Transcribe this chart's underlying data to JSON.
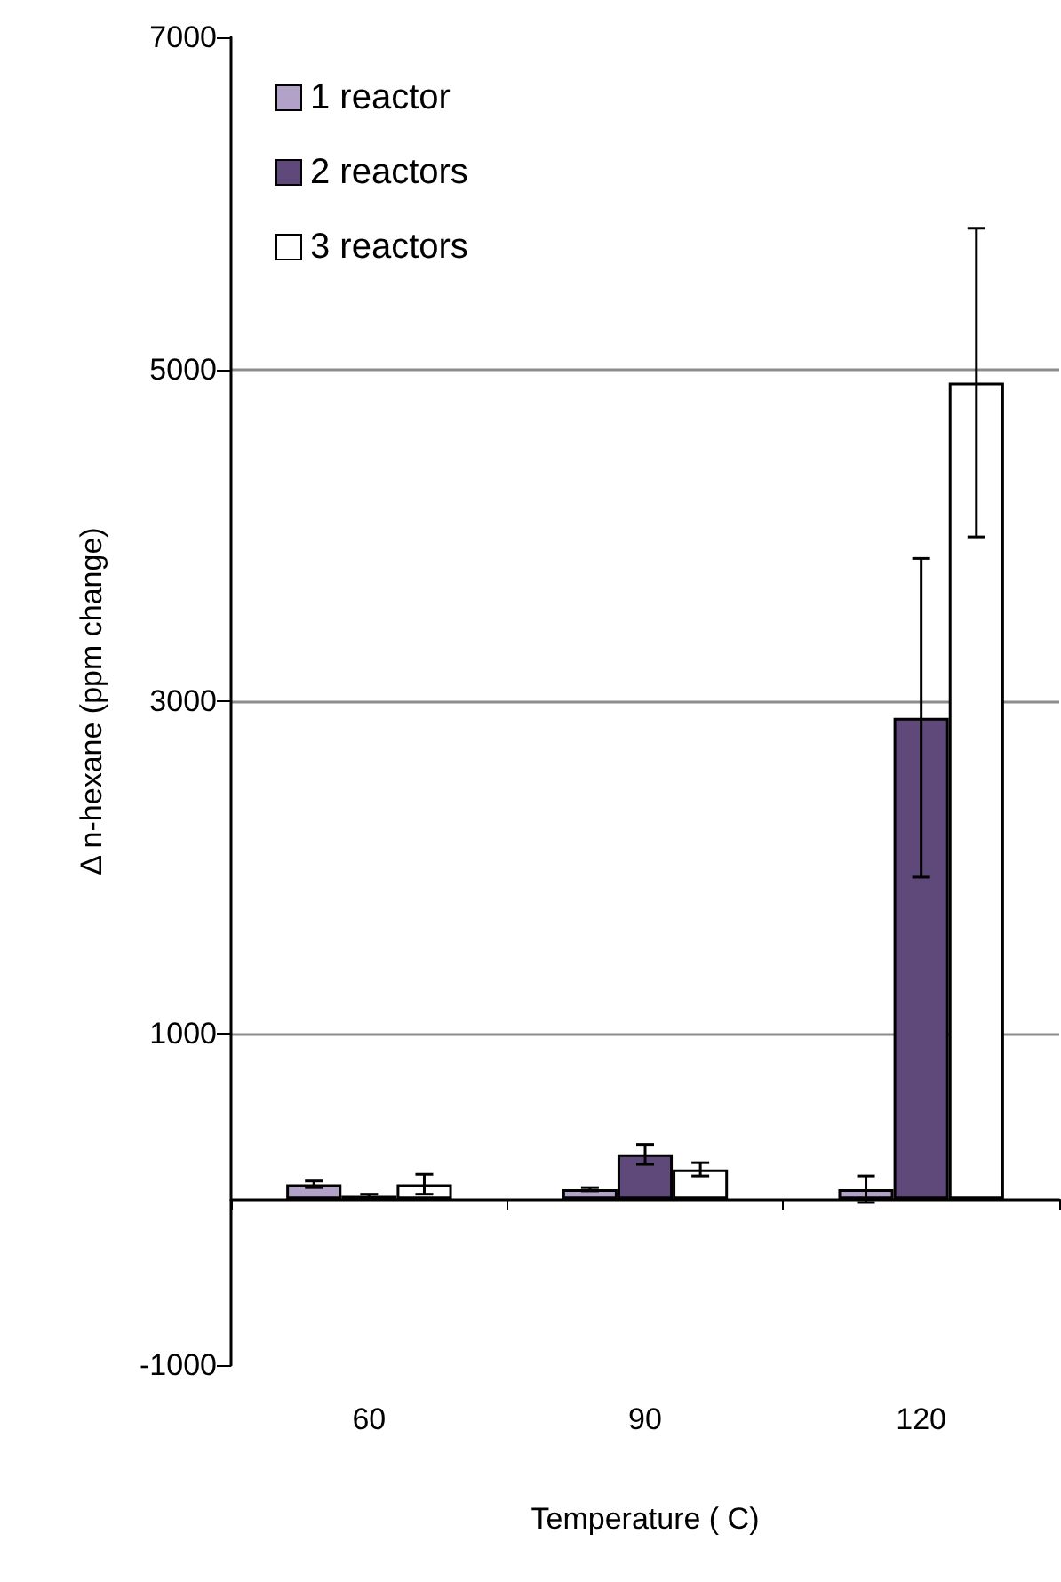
{
  "chart_data": {
    "type": "bar",
    "xlabel": "Temperature ( C)",
    "ylabel": "Δ n-hexane (ppm change)",
    "categories": [
      "60",
      "90",
      "120"
    ],
    "series": [
      {
        "name": "1 reactor",
        "color": "#b3a2c7",
        "values": [
          90,
          60,
          60
        ],
        "errors": [
          20,
          10,
          80
        ]
      },
      {
        "name": "2 reactors",
        "color": "#5f497a",
        "values": [
          20,
          270,
          2900
        ],
        "errors": [
          10,
          60,
          960
        ]
      },
      {
        "name": "3 reactors",
        "color": "#ffffff",
        "values": [
          90,
          180,
          4920
        ],
        "errors": [
          60,
          40,
          930
        ]
      }
    ],
    "ylim": [
      -1000,
      7000
    ],
    "yticks": [
      -1000,
      1000,
      3000,
      5000,
      7000
    ],
    "grid": "y",
    "legend": "top left"
  }
}
